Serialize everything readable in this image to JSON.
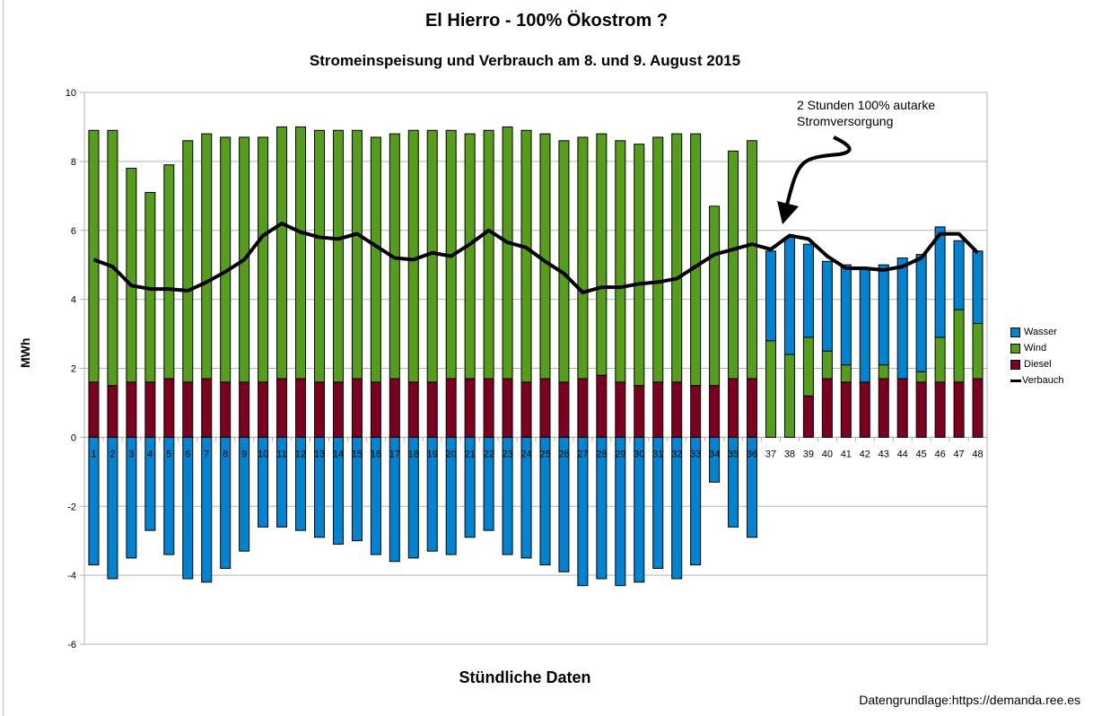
{
  "chart_data": {
    "type": "bar",
    "stacked": true,
    "title": "El Hierro - 100% Ökostrom ?",
    "subtitle": "Stromeinspeisung und Verbrauch am 8. und 9. August 2015",
    "xlabel": "Stündliche Daten",
    "ylabel": "MWh",
    "ylim": [
      -6,
      10
    ],
    "yticks": [
      -6,
      -4,
      -2,
      0,
      2,
      4,
      6,
      8,
      10
    ],
    "grid": true,
    "legend_position": "right",
    "categories": [
      1,
      2,
      3,
      4,
      5,
      6,
      7,
      8,
      9,
      10,
      11,
      12,
      13,
      14,
      15,
      16,
      17,
      18,
      19,
      20,
      21,
      22,
      23,
      24,
      25,
      26,
      27,
      28,
      29,
      30,
      31,
      32,
      33,
      34,
      35,
      36,
      37,
      38,
      39,
      40,
      41,
      42,
      43,
      44,
      45,
      46,
      47,
      48
    ],
    "series": [
      {
        "name": "Diesel",
        "type": "bar",
        "color": "#7e0021",
        "values": [
          1.6,
          1.5,
          1.6,
          1.6,
          1.7,
          1.6,
          1.7,
          1.6,
          1.6,
          1.6,
          1.7,
          1.7,
          1.6,
          1.6,
          1.7,
          1.6,
          1.7,
          1.6,
          1.6,
          1.7,
          1.7,
          1.7,
          1.7,
          1.6,
          1.7,
          1.6,
          1.7,
          1.8,
          1.6,
          1.5,
          1.6,
          1.6,
          1.5,
          1.5,
          1.7,
          1.7,
          0,
          0,
          1.2,
          1.7,
          1.6,
          1.6,
          1.7,
          1.7,
          1.6,
          1.6,
          1.6,
          1.7
        ]
      },
      {
        "name": "Wind",
        "type": "bar",
        "color": "#579d1c",
        "values": [
          7.3,
          7.4,
          6.2,
          5.5,
          6.2,
          7.0,
          7.1,
          7.1,
          7.1,
          7.1,
          7.3,
          7.3,
          7.3,
          7.3,
          7.2,
          7.1,
          7.1,
          7.3,
          7.3,
          7.2,
          7.1,
          7.2,
          7.3,
          7.3,
          7.1,
          7.0,
          7.0,
          7.0,
          7.0,
          7.0,
          7.1,
          7.2,
          7.3,
          5.2,
          6.6,
          6.9,
          2.8,
          2.4,
          1.7,
          0.8,
          0.5,
          0,
          0.4,
          0,
          0.3,
          1.3,
          2.1,
          1.6
        ]
      },
      {
        "name": "Wasser",
        "type": "bar",
        "color": "#0084d1",
        "values": [
          -3.7,
          -4.1,
          -3.5,
          -2.7,
          -3.4,
          -4.1,
          -4.2,
          -3.8,
          -3.3,
          -2.6,
          -2.6,
          -2.7,
          -2.9,
          -3.1,
          -3.0,
          -3.4,
          -3.6,
          -3.5,
          -3.3,
          -3.4,
          -2.9,
          -2.7,
          -3.4,
          -3.5,
          -3.7,
          -3.9,
          -4.3,
          -4.1,
          -4.3,
          -4.2,
          -3.8,
          -4.1,
          -3.7,
          -1.3,
          -2.6,
          -2.9,
          2.6,
          3.4,
          2.7,
          2.6,
          2.9,
          3.3,
          2.9,
          3.5,
          3.4,
          3.2,
          2.0,
          2.1
        ]
      },
      {
        "name": "Verbauch",
        "type": "line",
        "color": "#000000",
        "values": [
          5.15,
          4.95,
          4.4,
          4.3,
          4.3,
          4.25,
          4.5,
          4.8,
          5.15,
          5.85,
          6.2,
          5.95,
          5.8,
          5.75,
          5.9,
          5.55,
          5.2,
          5.15,
          5.35,
          5.25,
          5.6,
          6.0,
          5.65,
          5.5,
          5.1,
          4.75,
          4.2,
          4.35,
          4.35,
          4.45,
          4.5,
          4.6,
          4.95,
          5.3,
          5.45,
          5.6,
          5.45,
          5.85,
          5.75,
          5.25,
          4.9,
          4.9,
          4.85,
          4.95,
          5.2,
          5.9,
          5.9,
          5.35
        ]
      }
    ],
    "annotation": [
      "2 Stunden 100% autarke",
      "Stromversorgung"
    ],
    "source": "Datengrundlage:https://demanda.ree.es"
  }
}
